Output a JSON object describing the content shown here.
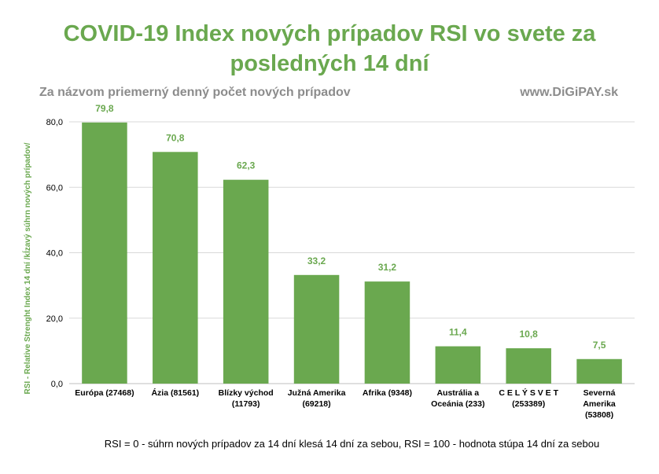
{
  "chart_data": {
    "type": "bar",
    "title": "COVID-19 Index nových prípadov RSI vo svete za posledných 14 dní",
    "subtitle": "Za názvom priemerný denný počet nových prípadov",
    "source": "www.DiGiPAY.sk",
    "ylabel": "RSI - Relative Strenght Index 14 dní /kĺzavý súhrn nových prípadov/",
    "footnote": "RSI = 0 - súhrn nových prípadov za 14 dní klesá 14 dní za sebou, RSI = 100 - hodnota stúpa 14 dní za sebou",
    "categories": [
      "Európa (27468)",
      "Ázia (81561)",
      "Blízky východ (11793)",
      "Južná Amerika (69218)",
      "Afrika (9348)",
      "Austrália a Oceánia (233)",
      "C E L Ý   S V E T (253389)",
      "Severná Amerika (53808)"
    ],
    "category_lines": [
      [
        "Európa (27468)"
      ],
      [
        "Ázia (81561)"
      ],
      [
        "Blízky východ",
        "(11793)"
      ],
      [
        "Južná Amerika",
        "(69218)"
      ],
      [
        "Afrika (9348)"
      ],
      [
        "Austrália a",
        "Oceánia (233)"
      ],
      [
        "C E L Ý   S V E T",
        "(253389)"
      ],
      [
        "Severná",
        "Amerika",
        "(53808)"
      ]
    ],
    "values": [
      79.8,
      70.8,
      62.3,
      33.2,
      31.2,
      11.4,
      10.8,
      7.5
    ],
    "value_labels": [
      "79,8",
      "70,8",
      "62,3",
      "33,2",
      "31,2",
      "11,4",
      "10,8",
      "7,5"
    ],
    "ylim": [
      0,
      80
    ],
    "yticks": [
      0,
      20,
      40,
      60,
      80
    ],
    "ytick_labels": [
      "0,0",
      "20,0",
      "40,0",
      "60,0",
      "80,0"
    ],
    "grid": true,
    "bar_color": "#6aa84f",
    "label_color": "#6aa84f"
  }
}
